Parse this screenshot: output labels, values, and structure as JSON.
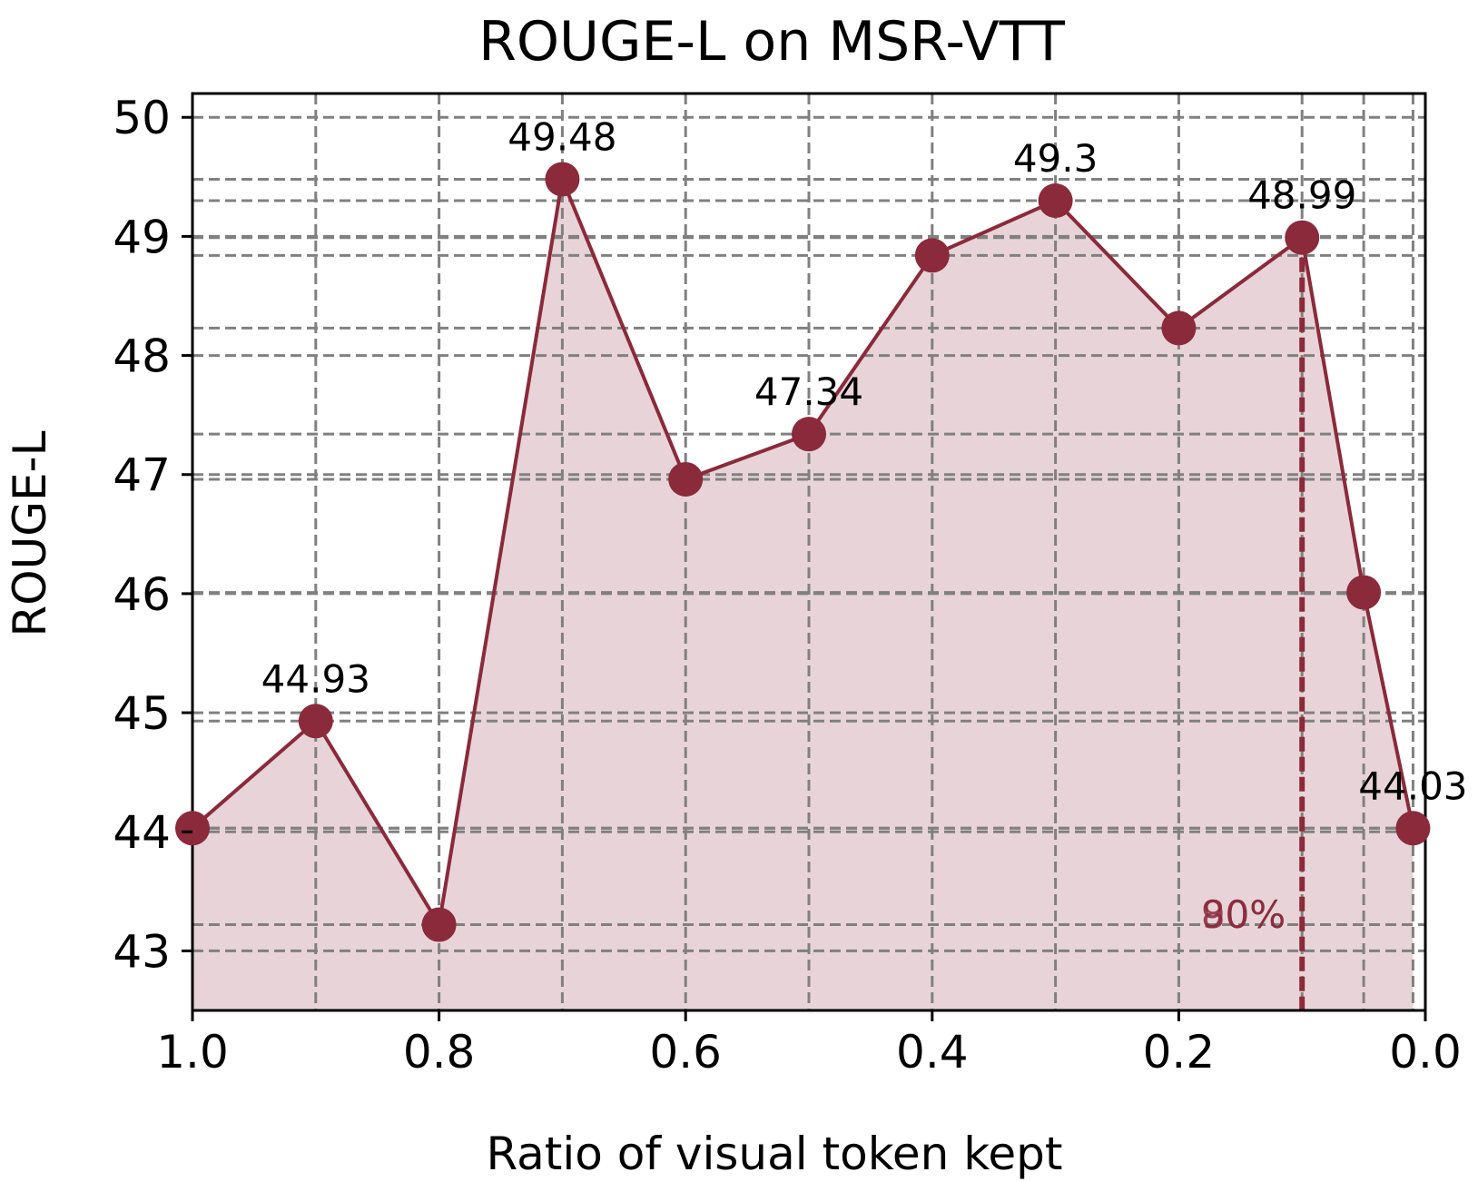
{
  "chart_data": {
    "type": "line",
    "title": "ROUGE-L on MSR-VTT",
    "xlabel": "Ratio of visual token kept",
    "ylabel": "ROUGE-L",
    "xlim": [
      1.0,
      0.0
    ],
    "ylim": [
      42.5,
      50.2
    ],
    "x_reversed": true,
    "grid": true,
    "fill_under": true,
    "line_color": "#8a2a3b",
    "fill_color": "#e8d4d8",
    "grid_color": "#808080",
    "xticks": [
      {
        "value": 1.0,
        "label": "1.0"
      },
      {
        "value": 0.8,
        "label": "0.8"
      },
      {
        "value": 0.6,
        "label": "0.6"
      },
      {
        "value": 0.4,
        "label": "0.4"
      },
      {
        "value": 0.2,
        "label": "0.2"
      },
      {
        "value": 0.0,
        "label": "0.0"
      }
    ],
    "yticks": [
      {
        "value": 43,
        "label": "43"
      },
      {
        "value": 44,
        "label": "44"
      },
      {
        "value": 45,
        "label": "45"
      },
      {
        "value": 46,
        "label": "46"
      },
      {
        "value": 47,
        "label": "47"
      },
      {
        "value": 48,
        "label": "48"
      },
      {
        "value": 49,
        "label": "49"
      },
      {
        "value": 50,
        "label": "50"
      }
    ],
    "points": [
      {
        "x": 1.0,
        "y": 44.03,
        "label": ""
      },
      {
        "x": 0.9,
        "y": 44.93,
        "label": "44.93"
      },
      {
        "x": 0.8,
        "y": 43.22,
        "label": ""
      },
      {
        "x": 0.7,
        "y": 49.48,
        "label": "49.48"
      },
      {
        "x": 0.6,
        "y": 46.96,
        "label": ""
      },
      {
        "x": 0.5,
        "y": 47.34,
        "label": "47.34"
      },
      {
        "x": 0.4,
        "y": 48.84,
        "label": ""
      },
      {
        "x": 0.3,
        "y": 49.3,
        "label": "49.3"
      },
      {
        "x": 0.2,
        "y": 48.23,
        "label": ""
      },
      {
        "x": 0.1,
        "y": 48.99,
        "label": "48.99"
      },
      {
        "x": 0.05,
        "y": 46.01,
        "label": ""
      },
      {
        "x": 0.01,
        "y": 44.03,
        "label": "44.03"
      }
    ],
    "marker_line": {
      "x": 0.1,
      "label": "90%",
      "overlap_label": "80%"
    }
  }
}
